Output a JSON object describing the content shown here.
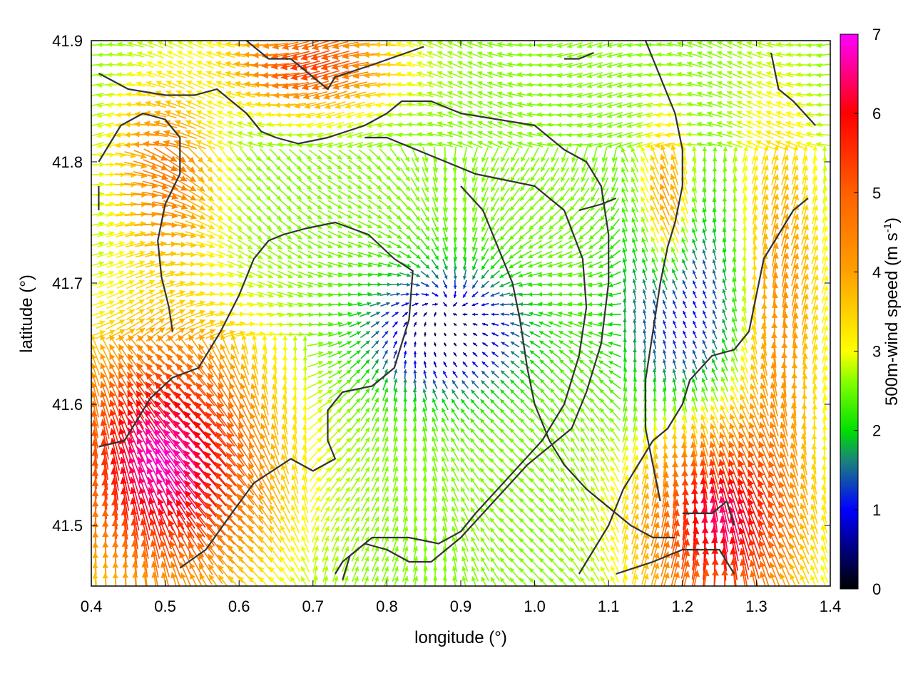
{
  "chart_data": {
    "type": "vector-field",
    "xlabel": "longitude (°)",
    "ylabel": "latitude (°)",
    "colorbar_label": "500m-wind speed (m s",
    "colorbar_label_sup": "-1",
    "colorbar_label_end": ")",
    "xlim": [
      0.4,
      1.4
    ],
    "ylim": [
      41.45,
      41.9
    ],
    "x_ticks": [
      {
        "value": 0.4,
        "label": "0.4"
      },
      {
        "value": 0.5,
        "label": "0.5"
      },
      {
        "value": 0.6,
        "label": "0.6"
      },
      {
        "value": 0.7,
        "label": "0.7"
      },
      {
        "value": 0.8,
        "label": "0.8"
      },
      {
        "value": 0.9,
        "label": "0.9"
      },
      {
        "value": 1.0,
        "label": "1.0"
      },
      {
        "value": 1.1,
        "label": "1.1"
      },
      {
        "value": 1.2,
        "label": "1.2"
      },
      {
        "value": 1.3,
        "label": "1.3"
      },
      {
        "value": 1.4,
        "label": "1.4"
      }
    ],
    "y_ticks": [
      {
        "value": 41.5,
        "label": "41.5"
      },
      {
        "value": 41.6,
        "label": "41.6"
      },
      {
        "value": 41.7,
        "label": "41.7"
      },
      {
        "value": 41.8,
        "label": "41.8"
      },
      {
        "value": 41.9,
        "label": "41.9"
      }
    ],
    "colorbar": {
      "range": [
        0,
        7
      ],
      "ticks": [
        {
          "value": 0,
          "label": "0"
        },
        {
          "value": 1,
          "label": "1"
        },
        {
          "value": 2,
          "label": "2"
        },
        {
          "value": 3,
          "label": "3"
        },
        {
          "value": 4,
          "label": "4"
        },
        {
          "value": 5,
          "label": "5"
        },
        {
          "value": 6,
          "label": "6"
        },
        {
          "value": 7,
          "label": "7"
        }
      ],
      "stops": [
        {
          "value": 0,
          "color": "#000000"
        },
        {
          "value": 1,
          "color": "#0000ff"
        },
        {
          "value": 1.6,
          "color": "#1a7f7f"
        },
        {
          "value": 2,
          "color": "#00e000"
        },
        {
          "value": 2.6,
          "color": "#80ff00"
        },
        {
          "value": 3,
          "color": "#ffff00"
        },
        {
          "value": 4,
          "color": "#ffa000"
        },
        {
          "value": 5,
          "color": "#ff6000"
        },
        {
          "value": 6,
          "color": "#ff0000"
        },
        {
          "value": 7,
          "color": "#ff00ff"
        }
      ]
    },
    "contours": [
      [
        [
          0.41,
          41.565
        ],
        [
          0.445,
          41.57
        ],
        [
          0.48,
          41.605
        ],
        [
          0.51,
          41.622
        ],
        [
          0.545,
          41.63
        ],
        [
          0.575,
          41.66
        ],
        [
          0.6,
          41.69
        ],
        [
          0.62,
          41.72
        ],
        [
          0.64,
          41.735
        ],
        [
          0.66,
          41.74
        ],
        [
          0.69,
          41.745
        ],
        [
          0.73,
          41.75
        ],
        [
          0.775,
          41.74
        ],
        [
          0.81,
          41.72
        ],
        [
          0.835,
          41.71
        ],
        [
          0.83,
          41.67
        ],
        [
          0.81,
          41.63
        ],
        [
          0.78,
          41.615
        ],
        [
          0.74,
          41.61
        ],
        [
          0.72,
          41.595
        ],
        [
          0.72,
          41.57
        ],
        [
          0.73,
          41.555
        ],
        [
          0.7,
          41.545
        ],
        [
          0.67,
          41.555
        ],
        [
          0.62,
          41.535
        ],
        [
          0.59,
          41.51
        ],
        [
          0.555,
          41.48
        ],
        [
          0.52,
          41.465
        ]
      ],
      [
        [
          0.41,
          41.8
        ],
        [
          0.44,
          41.83
        ],
        [
          0.47,
          41.84
        ],
        [
          0.5,
          41.835
        ],
        [
          0.52,
          41.82
        ],
        [
          0.52,
          41.79
        ],
        [
          0.5,
          41.765
        ],
        [
          0.49,
          41.735
        ],
        [
          0.495,
          41.705
        ],
        [
          0.505,
          41.68
        ],
        [
          0.51,
          41.66
        ]
      ],
      [
        [
          0.41,
          41.873
        ],
        [
          0.45,
          41.86
        ],
        [
          0.5,
          41.855
        ],
        [
          0.54,
          41.855
        ],
        [
          0.57,
          41.86
        ],
        [
          0.61,
          41.84
        ],
        [
          0.63,
          41.825
        ],
        [
          0.65,
          41.82
        ],
        [
          0.68,
          41.815
        ],
        [
          0.72,
          41.82
        ],
        [
          0.77,
          41.83
        ],
        [
          0.8,
          41.84
        ],
        [
          0.82,
          41.85
        ],
        [
          0.86,
          41.85
        ],
        [
          0.9,
          41.84
        ],
        [
          0.95,
          41.835
        ],
        [
          1.0,
          41.83
        ],
        [
          1.04,
          41.81
        ],
        [
          1.07,
          41.8
        ],
        [
          1.09,
          41.78
        ],
        [
          1.1,
          41.74
        ],
        [
          1.1,
          41.7
        ],
        [
          1.09,
          41.65
        ],
        [
          1.07,
          41.61
        ],
        [
          1.05,
          41.58
        ],
        [
          1.02,
          41.565
        ],
        [
          0.99,
          41.55
        ],
        [
          0.96,
          41.53
        ],
        [
          0.93,
          41.51
        ],
        [
          0.9,
          41.49
        ],
        [
          0.88,
          41.48
        ],
        [
          0.86,
          41.47
        ],
        [
          0.83,
          41.47
        ],
        [
          0.8,
          41.48
        ],
        [
          0.77,
          41.485
        ],
        [
          0.74,
          41.47
        ],
        [
          0.73,
          41.46
        ]
      ],
      [
        [
          0.74,
          41.455
        ],
        [
          0.75,
          41.475
        ],
        [
          0.78,
          41.49
        ],
        [
          0.83,
          41.49
        ],
        [
          0.87,
          41.485
        ],
        [
          0.9,
          41.495
        ],
        [
          0.92,
          41.51
        ],
        [
          0.95,
          41.53
        ],
        [
          0.98,
          41.55
        ],
        [
          1.01,
          41.57
        ],
        [
          1.04,
          41.6
        ],
        [
          1.06,
          41.64
        ],
        [
          1.07,
          41.68
        ],
        [
          1.065,
          41.72
        ],
        [
          1.04,
          41.76
        ],
        [
          1.0,
          41.78
        ],
        [
          0.96,
          41.785
        ],
        [
          0.92,
          41.79
        ],
        [
          0.88,
          41.8
        ],
        [
          0.84,
          41.81
        ],
        [
          0.8,
          41.82
        ],
        [
          0.77,
          41.82
        ]
      ],
      [
        [
          0.9,
          41.78
        ],
        [
          0.93,
          41.76
        ],
        [
          0.95,
          41.73
        ],
        [
          0.97,
          41.7
        ],
        [
          0.98,
          41.67
        ],
        [
          0.99,
          41.63
        ],
        [
          1.0,
          41.6
        ],
        [
          1.02,
          41.57
        ],
        [
          1.04,
          41.55
        ],
        [
          1.07,
          41.53
        ],
        [
          1.1,
          41.515
        ],
        [
          1.13,
          41.5
        ],
        [
          1.16,
          41.49
        ],
        [
          1.19,
          41.49
        ]
      ],
      [
        [
          1.15,
          41.9
        ],
        [
          1.17,
          41.87
        ],
        [
          1.19,
          41.84
        ],
        [
          1.2,
          41.81
        ],
        [
          1.2,
          41.78
        ],
        [
          1.19,
          41.75
        ],
        [
          1.18,
          41.73
        ],
        [
          1.17,
          41.7
        ],
        [
          1.16,
          41.66
        ],
        [
          1.15,
          41.62
        ],
        [
          1.15,
          41.58
        ],
        [
          1.16,
          41.55
        ],
        [
          1.17,
          41.52
        ]
      ],
      [
        [
          1.37,
          41.77
        ],
        [
          1.35,
          41.76
        ],
        [
          1.33,
          41.74
        ],
        [
          1.31,
          41.72
        ],
        [
          1.3,
          41.69
        ],
        [
          1.29,
          41.66
        ],
        [
          1.27,
          41.645
        ],
        [
          1.24,
          41.64
        ],
        [
          1.21,
          41.62
        ],
        [
          1.2,
          41.6
        ],
        [
          1.18,
          41.58
        ],
        [
          1.16,
          41.57
        ],
        [
          1.14,
          41.55
        ],
        [
          1.12,
          41.53
        ],
        [
          1.1,
          41.5
        ],
        [
          1.08,
          41.48
        ],
        [
          1.06,
          41.46
        ]
      ],
      [
        [
          1.32,
          41.89
        ],
        [
          1.33,
          41.86
        ],
        [
          1.35,
          41.85
        ],
        [
          1.38,
          41.83
        ]
      ],
      [
        [
          1.2,
          41.51
        ],
        [
          1.24,
          41.51
        ],
        [
          1.26,
          41.52
        ],
        [
          1.27,
          41.5
        ]
      ],
      [
        [
          1.11,
          41.46
        ],
        [
          1.16,
          41.47
        ],
        [
          1.2,
          41.48
        ],
        [
          1.25,
          41.48
        ],
        [
          1.27,
          41.46
        ]
      ],
      [
        [
          0.61,
          41.9
        ],
        [
          0.64,
          41.885
        ],
        [
          0.67,
          41.885
        ],
        [
          0.7,
          41.87
        ],
        [
          0.72,
          41.86
        ],
        [
          0.73,
          41.87
        ],
        [
          0.78,
          41.88
        ],
        [
          0.85,
          41.895
        ]
      ],
      [
        [
          1.04,
          41.885
        ],
        [
          1.06,
          41.885
        ],
        [
          1.08,
          41.89
        ]
      ],
      [
        [
          0.41,
          41.78
        ],
        [
          0.41,
          41.76
        ]
      ],
      [
        [
          1.06,
          41.76
        ],
        [
          1.09,
          41.765
        ],
        [
          1.11,
          41.77
        ]
      ]
    ]
  }
}
